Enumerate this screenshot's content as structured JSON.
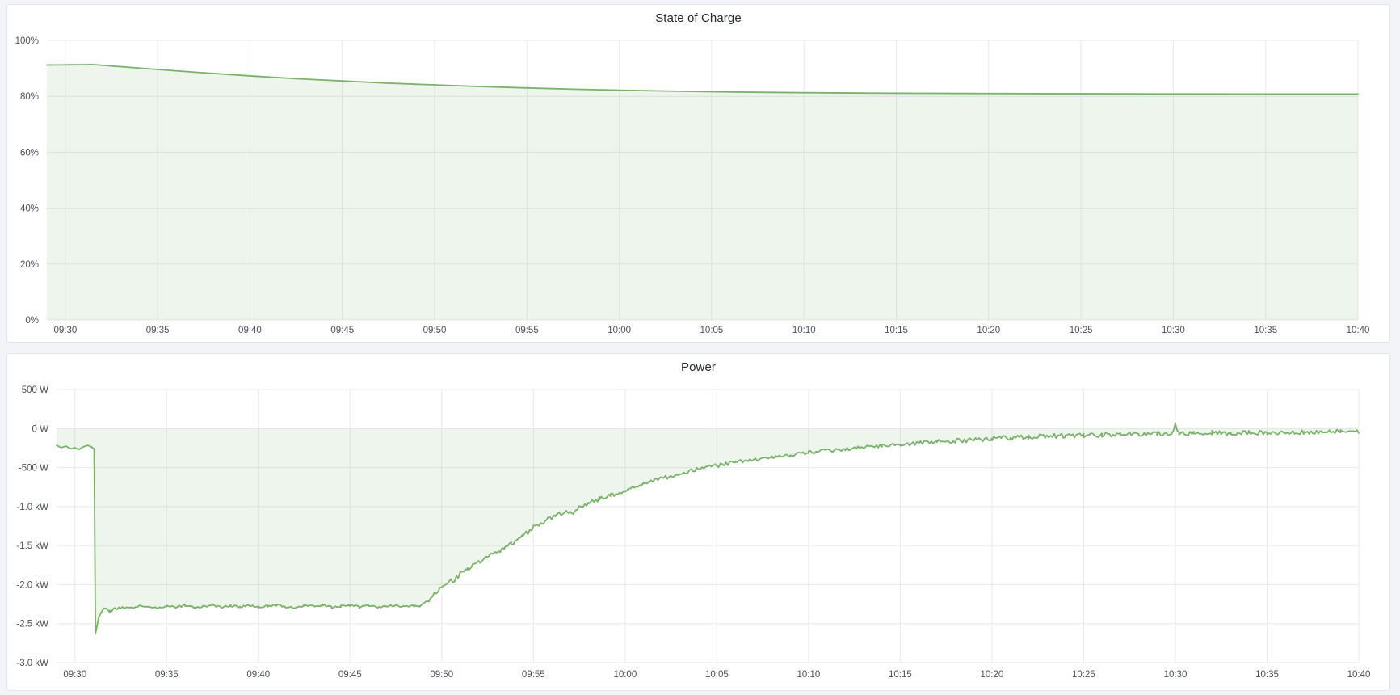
{
  "page": {
    "background_color": "#f3f4f8",
    "panel_background": "#ffffff",
    "panel_border_color": "#e2e5ea",
    "grid_color": "#e9eaec",
    "tick_label_color": "#4c5057",
    "title_color": "#24292e",
    "series_green": "#79b269"
  },
  "chart_data": [
    {
      "type": "area",
      "title": "State of Charge",
      "grid": true,
      "legend": "none",
      "x_axis": {
        "start": "09:29",
        "end": "10:40",
        "tick_labels": [
          "09:30",
          "09:35",
          "09:40",
          "09:45",
          "09:50",
          "09:55",
          "10:00",
          "10:05",
          "10:10",
          "10:15",
          "10:20",
          "10:25",
          "10:30",
          "10:35",
          "10:40"
        ]
      },
      "y_axis": {
        "min": 0,
        "max": 100,
        "tick_values": [
          0,
          20,
          40,
          60,
          80,
          100
        ],
        "tick_labels": [
          "0%",
          "20%",
          "40%",
          "60%",
          "80%",
          "100%"
        ]
      },
      "series": [
        {
          "name": "State of Charge",
          "unit": "%",
          "color": "#79b269",
          "fill_color": "rgba(121,178,105,0.13)",
          "smooth": true,
          "fill_baseline": 0,
          "points_t_unit": "minutes after 09:29",
          "points": [
            [
              0,
              91.2
            ],
            [
              1,
              91.25
            ],
            [
              2,
              91.3
            ],
            [
              2.6,
              91.3
            ],
            [
              4,
              90.6
            ],
            [
              6,
              89.6
            ],
            [
              8.5,
              88.4
            ],
            [
              11,
              87.3
            ],
            [
              13.5,
              86.3
            ],
            [
              16,
              85.5
            ],
            [
              18.5,
              84.7
            ],
            [
              21,
              84.1
            ],
            [
              23.5,
              83.5
            ],
            [
              26,
              83.0
            ],
            [
              28.5,
              82.55
            ],
            [
              31,
              82.2
            ],
            [
              33.5,
              81.9
            ],
            [
              36,
              81.65
            ],
            [
              38.5,
              81.45
            ],
            [
              41,
              81.3
            ],
            [
              43.5,
              81.2
            ],
            [
              46,
              81.1
            ],
            [
              48.5,
              81.05
            ],
            [
              51,
              81.0
            ],
            [
              53.5,
              80.95
            ],
            [
              56,
              80.9
            ],
            [
              58.5,
              80.87
            ],
            [
              61,
              80.85
            ],
            [
              63.5,
              80.83
            ],
            [
              66,
              80.8
            ],
            [
              68.5,
              80.8
            ],
            [
              71,
              80.8
            ]
          ],
          "noise_segments": []
        }
      ]
    },
    {
      "type": "area",
      "title": "Power",
      "grid": true,
      "legend": "none",
      "x_axis": {
        "start": "09:29",
        "end": "10:40",
        "tick_labels": [
          "09:30",
          "09:35",
          "09:40",
          "09:45",
          "09:50",
          "09:55",
          "10:00",
          "10:05",
          "10:10",
          "10:15",
          "10:20",
          "10:25",
          "10:30",
          "10:35",
          "10:40"
        ]
      },
      "y_axis": {
        "min": -3000,
        "max": 500,
        "tick_values": [
          500,
          0,
          -500,
          -1000,
          -1500,
          -2000,
          -2500,
          -3000
        ],
        "tick_labels": [
          "500 W",
          "0 W",
          "-500 W",
          "-1.0 kW",
          "-1.5 kW",
          "-2.0 kW",
          "-2.5 kW",
          "-3.0 kW"
        ]
      },
      "series": [
        {
          "name": "Power",
          "unit": "W",
          "color": "#79b269",
          "fill_color": "rgba(121,178,105,0.13)",
          "smooth": false,
          "fill_baseline": 0,
          "points_t_unit": "minutes after 09:29",
          "points": [
            [
              0,
              -215
            ],
            [
              0.25,
              -245
            ],
            [
              0.5,
              -225
            ],
            [
              0.8,
              -260
            ],
            [
              1.0,
              -245
            ],
            [
              1.2,
              -270
            ],
            [
              1.45,
              -235
            ],
            [
              1.7,
              -215
            ],
            [
              1.9,
              -235
            ],
            [
              2.05,
              -260
            ],
            [
              2.12,
              -2630
            ],
            [
              2.3,
              -2420
            ],
            [
              2.5,
              -2330
            ],
            [
              2.7,
              -2300
            ],
            [
              2.9,
              -2345
            ],
            [
              3.2,
              -2310
            ],
            [
              3.6,
              -2290
            ],
            [
              4.0,
              -2305
            ],
            [
              4.5,
              -2275
            ],
            [
              5,
              -2285
            ],
            [
              5.5,
              -2300
            ],
            [
              6,
              -2270
            ],
            [
              6.5,
              -2290
            ],
            [
              7,
              -2265
            ],
            [
              7.5,
              -2295
            ],
            [
              8,
              -2280
            ],
            [
              8.5,
              -2260
            ],
            [
              9,
              -2290
            ],
            [
              9.5,
              -2270
            ],
            [
              10,
              -2285
            ],
            [
              10.5,
              -2265
            ],
            [
              11,
              -2290
            ],
            [
              11.5,
              -2275
            ],
            [
              12,
              -2260
            ],
            [
              12.5,
              -2285
            ],
            [
              13,
              -2295
            ],
            [
              13.5,
              -2270
            ],
            [
              14,
              -2280
            ],
            [
              14.5,
              -2260
            ],
            [
              15,
              -2290
            ],
            [
              15.5,
              -2275
            ],
            [
              16,
              -2265
            ],
            [
              16.5,
              -2285
            ],
            [
              17,
              -2270
            ],
            [
              17.5,
              -2290
            ],
            [
              18,
              -2275
            ],
            [
              18.5,
              -2265
            ],
            [
              19,
              -2280
            ],
            [
              19.5,
              -2270
            ],
            [
              19.8,
              -2275
            ],
            [
              20.3,
              -2190
            ],
            [
              21,
              -2030
            ],
            [
              21.7,
              -1930
            ],
            [
              22.4,
              -1800
            ],
            [
              23,
              -1720
            ],
            [
              23.6,
              -1640
            ],
            [
              24.2,
              -1560
            ],
            [
              24.8,
              -1470
            ],
            [
              25.4,
              -1390
            ],
            [
              26,
              -1260
            ],
            [
              26.6,
              -1190
            ],
            [
              27.2,
              -1120
            ],
            [
              27.8,
              -1060
            ],
            [
              28.2,
              -1090
            ],
            [
              28.6,
              -990
            ],
            [
              29,
              -950
            ],
            [
              29.6,
              -900
            ],
            [
              30.2,
              -855
            ],
            [
              31,
              -790
            ],
            [
              32,
              -700
            ],
            [
              33,
              -640
            ],
            [
              34,
              -580
            ],
            [
              35,
              -520
            ],
            [
              36,
              -475
            ],
            [
              37,
              -435
            ],
            [
              38,
              -400
            ],
            [
              39,
              -365
            ],
            [
              40,
              -335
            ],
            [
              41,
              -310
            ],
            [
              42,
              -285
            ],
            [
              43,
              -262
            ],
            [
              44,
              -240
            ],
            [
              45,
              -222
            ],
            [
              46,
              -205
            ],
            [
              47,
              -188
            ],
            [
              48,
              -172
            ],
            [
              49,
              -158
            ],
            [
              50,
              -145
            ],
            [
              51,
              -132
            ],
            [
              52,
              -118
            ],
            [
              53,
              -108
            ],
            [
              54,
              -98
            ],
            [
              55,
              -92
            ],
            [
              56,
              -86
            ],
            [
              57,
              -80
            ],
            [
              58,
              -76
            ],
            [
              59,
              -72
            ],
            [
              60,
              -68
            ],
            [
              60.8,
              -60
            ],
            [
              61.0,
              55
            ],
            [
              61.2,
              -70
            ],
            [
              62,
              -58
            ],
            [
              63,
              -52
            ],
            [
              64,
              -62
            ],
            [
              65,
              -50
            ],
            [
              66,
              -55
            ],
            [
              67,
              -48
            ],
            [
              68,
              -44
            ],
            [
              69,
              -52
            ],
            [
              70,
              -40
            ],
            [
              71,
              -48
            ]
          ],
          "noise_segments": [
            [
              2.6,
              19.8,
              14
            ],
            [
              20.3,
              31,
              32
            ],
            [
              31,
              45,
              24
            ],
            [
              45,
              71,
              30
            ]
          ]
        }
      ]
    }
  ]
}
